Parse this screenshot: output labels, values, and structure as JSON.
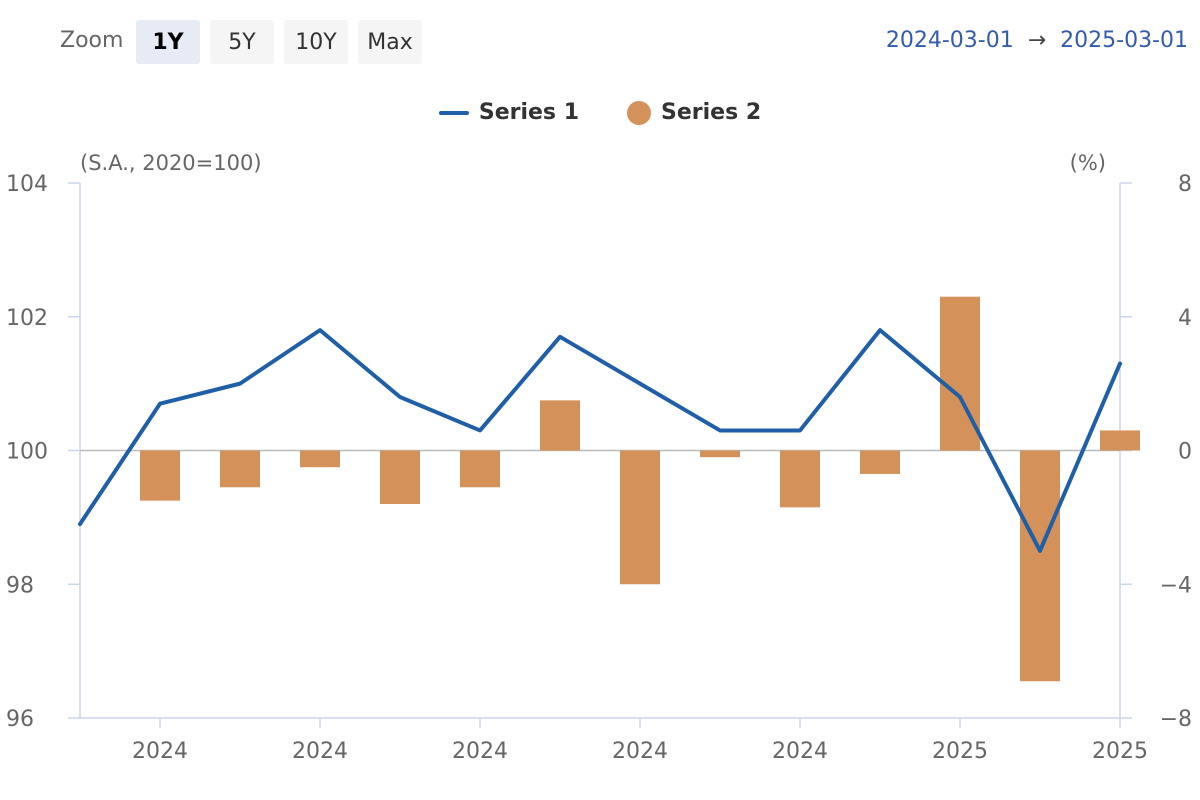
{
  "toolbar": {
    "zoom_label": "Zoom",
    "buttons": [
      "1Y",
      "5Y",
      "10Y",
      "Max"
    ],
    "active": "1Y",
    "range_from": "2024-03-01",
    "range_arrow": "→",
    "range_to": "2025-03-01"
  },
  "colors": {
    "series1": "#1f5fa8",
    "series2": "#d4925a",
    "axis": "#ccd6eb",
    "zero_line": "#bbbbbb"
  },
  "chart_data": {
    "type": "bar+line",
    "legend_placement": "top-center",
    "grid": false,
    "x_tick_labels": [
      "2024",
      "2024",
      "2024",
      "2024",
      "2024",
      "2025",
      "2025"
    ],
    "left_axis": {
      "title": "(S.A., 2020=100)",
      "ylim": [
        96,
        104
      ],
      "ticks": [
        96,
        98,
        100,
        102,
        104
      ]
    },
    "right_axis": {
      "title": "(%)",
      "ylim": [
        -8,
        8
      ],
      "ticks": [
        -8,
        -4,
        0,
        4,
        8
      ],
      "tick_labels": [
        "−8",
        "−4",
        "0",
        "4",
        "8"
      ]
    },
    "series": [
      {
        "name": "Series 1",
        "type": "line",
        "axis": "left",
        "values": [
          98.9,
          100.7,
          101.0,
          101.8,
          100.8,
          100.3,
          101.7,
          101.0,
          100.3,
          100.3,
          101.8,
          100.8,
          98.5,
          101.3
        ]
      },
      {
        "name": "Series 2",
        "type": "bar",
        "axis": "right",
        "values": [
          null,
          -1.5,
          -1.1,
          -0.5,
          -1.6,
          -1.1,
          1.5,
          -4.0,
          -0.2,
          -1.7,
          -0.7,
          4.6,
          -6.9,
          0.6
        ]
      }
    ]
  }
}
